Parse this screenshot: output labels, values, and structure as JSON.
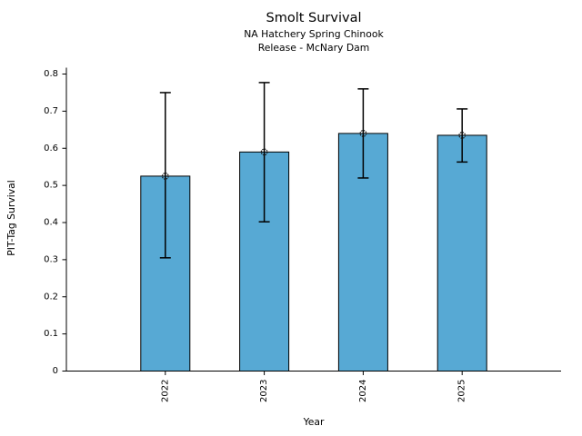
{
  "chart_data": {
    "type": "bar",
    "title": "Smolt Survival",
    "subtitle_line1": "NA Hatchery Spring Chinook",
    "subtitle_line2": "Release - McNary Dam",
    "xlabel": "Year",
    "ylabel": "PIT-Tag Survival",
    "categories": [
      "2022",
      "2023",
      "2024",
      "2025"
    ],
    "values": [
      0.525,
      0.59,
      0.64,
      0.635
    ],
    "error_low": [
      0.305,
      0.402,
      0.52,
      0.563
    ],
    "error_high": [
      0.75,
      0.777,
      0.76,
      0.706
    ],
    "ylim": [
      0,
      0.817
    ],
    "ytick_values": [
      0,
      0.1,
      0.2,
      0.3,
      0.4,
      0.5,
      0.6,
      0.7,
      0.8
    ],
    "ytick_labels": [
      "0",
      "0.1",
      "0.2",
      "0.3",
      "0.4",
      "0.5",
      "0.6",
      "0.7",
      "0.8"
    ],
    "bar_color": "#57A9D4",
    "bar_edge_color": "#000000",
    "errorbar_color": "#000000",
    "marker": "open-circle",
    "grid": false,
    "legend": null
  }
}
